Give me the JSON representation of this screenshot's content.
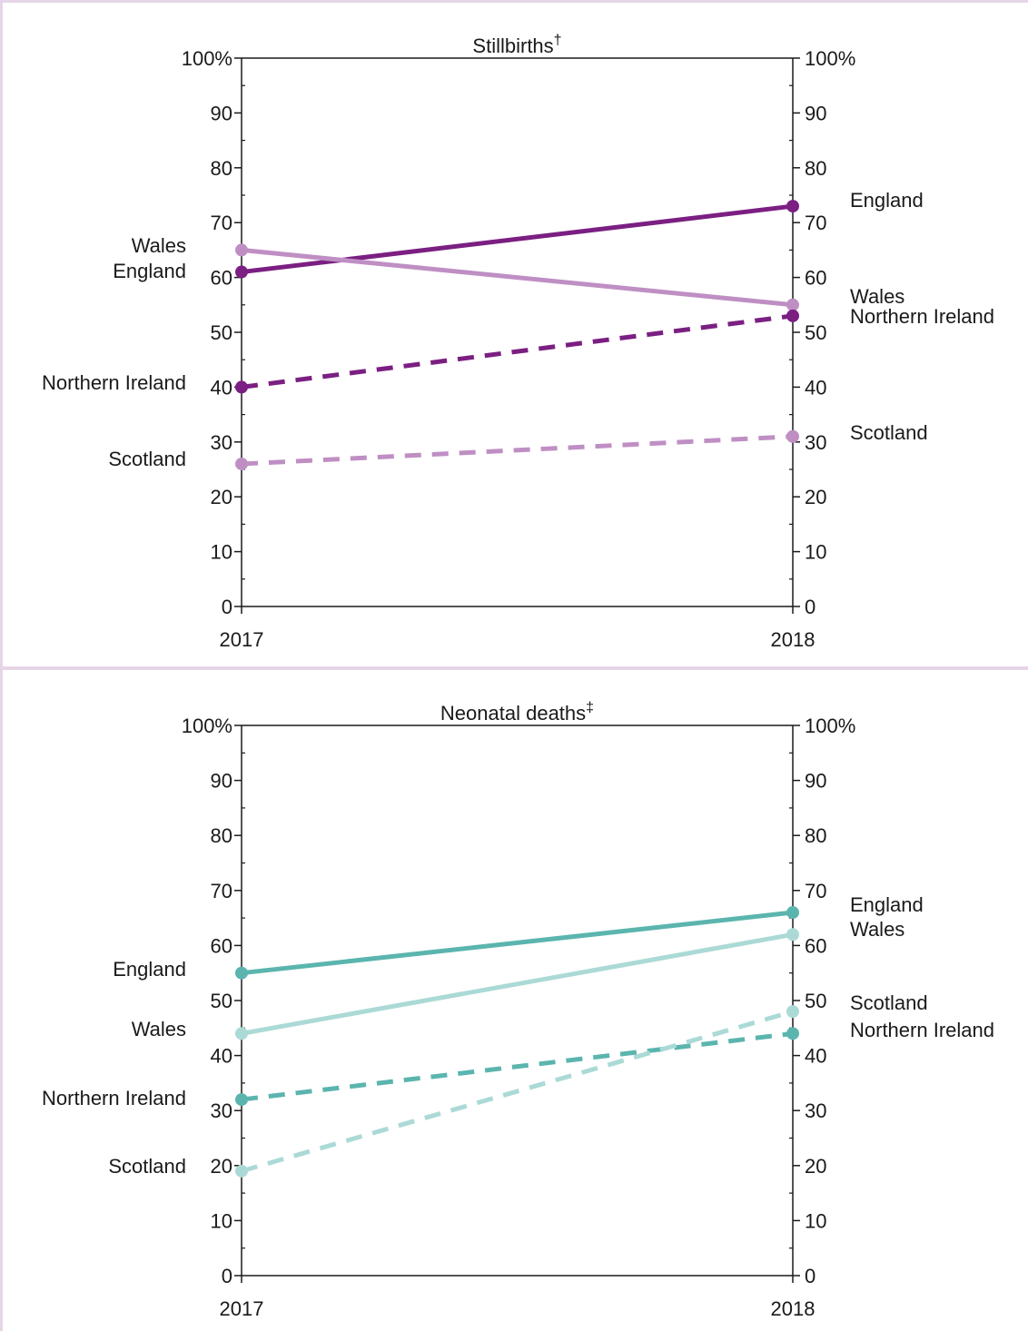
{
  "chart_data": [
    {
      "type": "line",
      "title": "Stillbirths",
      "title_mark": "†",
      "x": [
        "2017",
        "2018"
      ],
      "ylim": [
        0,
        100
      ],
      "yticks": [
        0,
        10,
        20,
        30,
        40,
        50,
        60,
        70,
        80,
        90,
        100
      ],
      "ytick_labels": [
        "0",
        "10",
        "20",
        "30",
        "40",
        "50",
        "60",
        "70",
        "80",
        "90",
        "100%"
      ],
      "grid": false,
      "series": [
        {
          "name": "England",
          "values": [
            61,
            73
          ],
          "color": "#7b1f82",
          "dash": false
        },
        {
          "name": "Wales",
          "values": [
            65,
            55
          ],
          "color": "#bf8fc4",
          "dash": false
        },
        {
          "name": "Northern Ireland",
          "values": [
            40,
            53
          ],
          "color": "#7b1f82",
          "dash": true
        },
        {
          "name": "Scotland",
          "values": [
            26,
            31
          ],
          "color": "#bf8fc4",
          "dash": true
        }
      ]
    },
    {
      "type": "line",
      "title": "Neonatal deaths",
      "title_mark": "‡",
      "x": [
        "2017",
        "2018"
      ],
      "ylim": [
        0,
        100
      ],
      "yticks": [
        0,
        10,
        20,
        30,
        40,
        50,
        60,
        70,
        80,
        90,
        100
      ],
      "ytick_labels": [
        "0",
        "10",
        "20",
        "30",
        "40",
        "50",
        "60",
        "70",
        "80",
        "90",
        "100%"
      ],
      "grid": false,
      "series": [
        {
          "name": "England",
          "values": [
            55,
            66
          ],
          "color": "#5bb5ae",
          "dash": false
        },
        {
          "name": "Wales",
          "values": [
            44,
            62
          ],
          "color": "#abdad6",
          "dash": false
        },
        {
          "name": "Northern Ireland",
          "values": [
            32,
            44
          ],
          "color": "#5bb5ae",
          "dash": true
        },
        {
          "name": "Scotland",
          "values": [
            19,
            48
          ],
          "color": "#abdad6",
          "dash": true
        }
      ]
    }
  ]
}
